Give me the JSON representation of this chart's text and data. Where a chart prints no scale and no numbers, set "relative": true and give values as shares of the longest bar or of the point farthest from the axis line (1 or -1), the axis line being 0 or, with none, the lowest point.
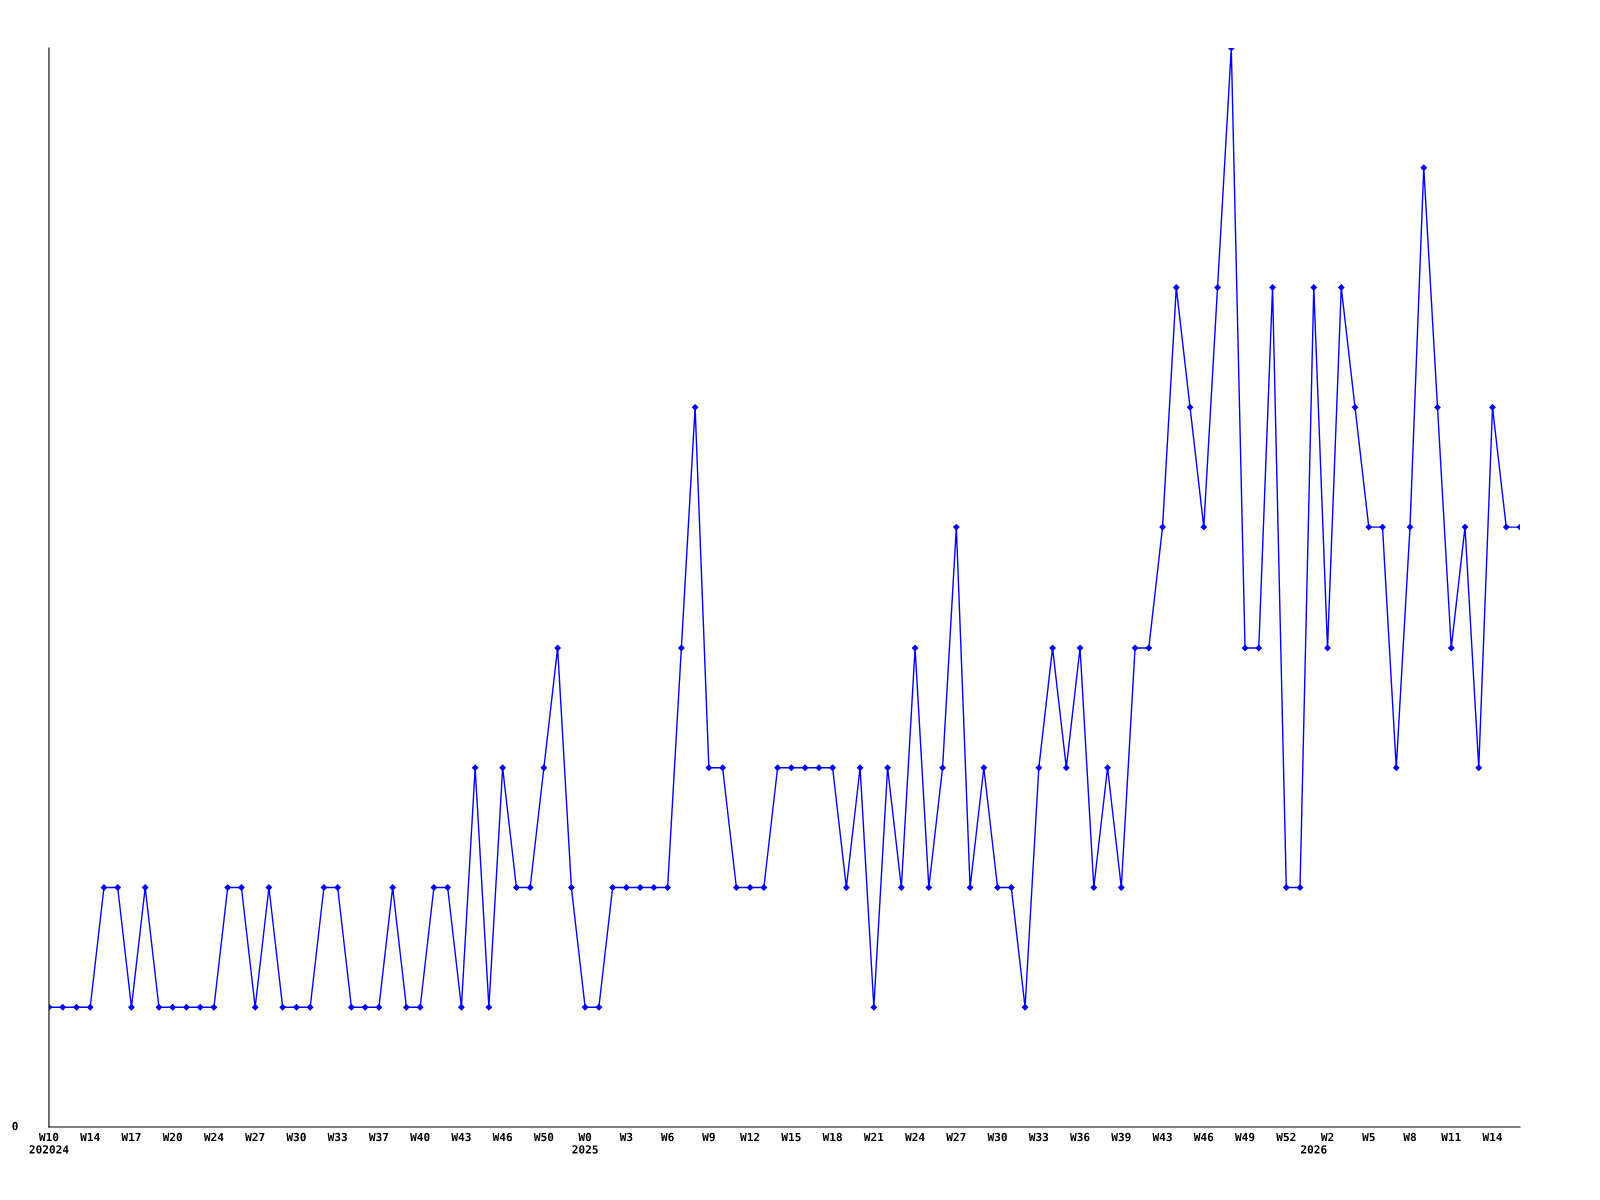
{
  "chart_data": {
    "type": "line",
    "relative": true,
    "marker": "diamond",
    "line_style": "solid",
    "grid": false,
    "legend": false,
    "categories": [
      "W10\n202024",
      null,
      null,
      "W14",
      null,
      null,
      "W17",
      null,
      null,
      "W20",
      null,
      null,
      "W24",
      null,
      null,
      "W27",
      null,
      null,
      "W30",
      null,
      null,
      "W33",
      null,
      null,
      "W37",
      null,
      null,
      "W40",
      null,
      null,
      "W43",
      null,
      null,
      "W46",
      null,
      null,
      "W50",
      null,
      null,
      "W0\n2025",
      null,
      null,
      "W3",
      null,
      null,
      "W6",
      null,
      null,
      "W9",
      null,
      null,
      "W12",
      null,
      null,
      "W15",
      null,
      null,
      "W18",
      null,
      null,
      "W21",
      null,
      null,
      "W24",
      null,
      null,
      "W27",
      null,
      null,
      "W30",
      null,
      null,
      "W33",
      null,
      null,
      "W36",
      null,
      null,
      "W39",
      null,
      null,
      "W43",
      null,
      null,
      "W46",
      null,
      null,
      "W49",
      null,
      null,
      "W52",
      null,
      "\n2026",
      "W2",
      null,
      null,
      "W5",
      null,
      null,
      "W8",
      null,
      null,
      "W11",
      null,
      null,
      "W14",
      null,
      null
    ],
    "series": [
      {
        "color": "#0000ff",
        "values": [
          0.111,
          0.111,
          0.111,
          0.111,
          0.222,
          0.222,
          0.111,
          0.222,
          0.111,
          0.111,
          0.111,
          0.111,
          0.111,
          0.222,
          0.222,
          0.111,
          0.222,
          0.111,
          0.111,
          0.111,
          0.222,
          0.222,
          0.111,
          0.111,
          0.111,
          0.222,
          0.111,
          0.111,
          0.222,
          0.222,
          0.111,
          0.333,
          0.111,
          0.333,
          0.222,
          0.222,
          0.333,
          0.444,
          0.222,
          0.111,
          0.111,
          0.222,
          0.222,
          0.222,
          0.222,
          0.222,
          0.444,
          0.667,
          0.333,
          0.333,
          0.222,
          0.222,
          0.222,
          0.333,
          0.333,
          0.333,
          0.333,
          0.333,
          0.222,
          0.333,
          0.111,
          0.333,
          0.222,
          0.444,
          0.222,
          0.333,
          0.556,
          0.222,
          0.333,
          0.222,
          0.222,
          0.111,
          0.333,
          0.444,
          0.333,
          0.444,
          0.222,
          0.333,
          0.222,
          0.444,
          0.444,
          0.556,
          0.778,
          0.667,
          0.556,
          0.778,
          1,
          0.444,
          0.444,
          0.778,
          0.222,
          0.222,
          0.778,
          0.444,
          0.778,
          0.667,
          0.556,
          0.556,
          0.333,
          0.556,
          0.889,
          0.667,
          0.444,
          0.556,
          0.333,
          0.667,
          0.556,
          0.556
        ]
      }
    ],
    "annotations": [
      "0"
    ]
  }
}
